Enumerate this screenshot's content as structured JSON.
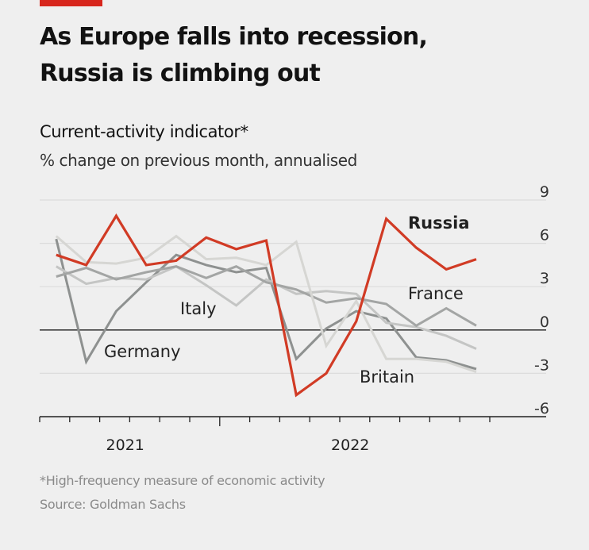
{
  "header": {
    "title_line1": "As Europe falls into recession,",
    "title_line2": "Russia is climbing out",
    "subtitle": "Current-activity indicator*",
    "units": "% change on previous month, annualised"
  },
  "footer": {
    "footnote": "*High-frequency measure of economic activity",
    "source": "Source: Goldman Sachs"
  },
  "colors": {
    "accent": "#d7261c",
    "russia": "#d13b25",
    "germany": "#8e9190",
    "france": "#a3a5a4",
    "italy": "#c4c5c4",
    "britain": "#d6d6d3",
    "grid": "#dcdcdc",
    "zero_line": "#1a1a1a"
  },
  "chart_data": {
    "type": "line",
    "title": "Current-activity indicator*",
    "subtitle": "% change on previous month, annualised",
    "xlabel": "",
    "ylabel": "% change on previous month, annualised",
    "ylim": [
      -6,
      9
    ],
    "yticks": [
      9,
      6,
      3,
      0,
      -3,
      -6
    ],
    "y_axis_side": "right",
    "grid": true,
    "x_tick_labels": [
      {
        "label": "2021",
        "index": 2.5
      },
      {
        "label": "2022",
        "index": 10
      }
    ],
    "x_minor_ticks": 16,
    "year_boundary_tick": 6,
    "n_points": 15,
    "series": [
      {
        "name": "Germany",
        "key": "germany",
        "label_text": "Germany",
        "values": [
          6.3,
          -2.2,
          1.3,
          3.3,
          5.2,
          4.5,
          4.0,
          4.3,
          -2.0,
          0.1,
          1.3,
          0.8,
          -1.9,
          -2.1,
          -2.7
        ]
      },
      {
        "name": "Italy",
        "key": "italy",
        "label_text": "Italy",
        "values": [
          4.4,
          3.2,
          3.6,
          3.5,
          4.4,
          3.1,
          1.7,
          3.5,
          2.5,
          2.7,
          2.5,
          0.5,
          0.2,
          -0.4,
          -1.3
        ]
      },
      {
        "name": "France",
        "key": "france",
        "label_text": "France",
        "values": [
          3.7,
          4.3,
          3.5,
          4.0,
          4.4,
          3.6,
          4.4,
          3.3,
          2.8,
          1.9,
          2.2,
          1.8,
          0.3,
          1.5,
          0.3
        ]
      },
      {
        "name": "Britain",
        "key": "britain",
        "label_text": "Britain",
        "values": [
          6.5,
          4.7,
          4.6,
          5.0,
          6.5,
          4.9,
          5.0,
          4.5,
          6.1,
          -1.1,
          2.0,
          -2.0,
          -2.0,
          -2.2,
          -2.9
        ]
      },
      {
        "name": "Russia",
        "key": "russia",
        "label_text": "Russia",
        "values": [
          5.2,
          4.5,
          7.9,
          4.5,
          4.8,
          6.4,
          5.6,
          6.2,
          -4.5,
          -3.0,
          0.6,
          7.7,
          5.7,
          4.2,
          4.9
        ]
      }
    ]
  }
}
